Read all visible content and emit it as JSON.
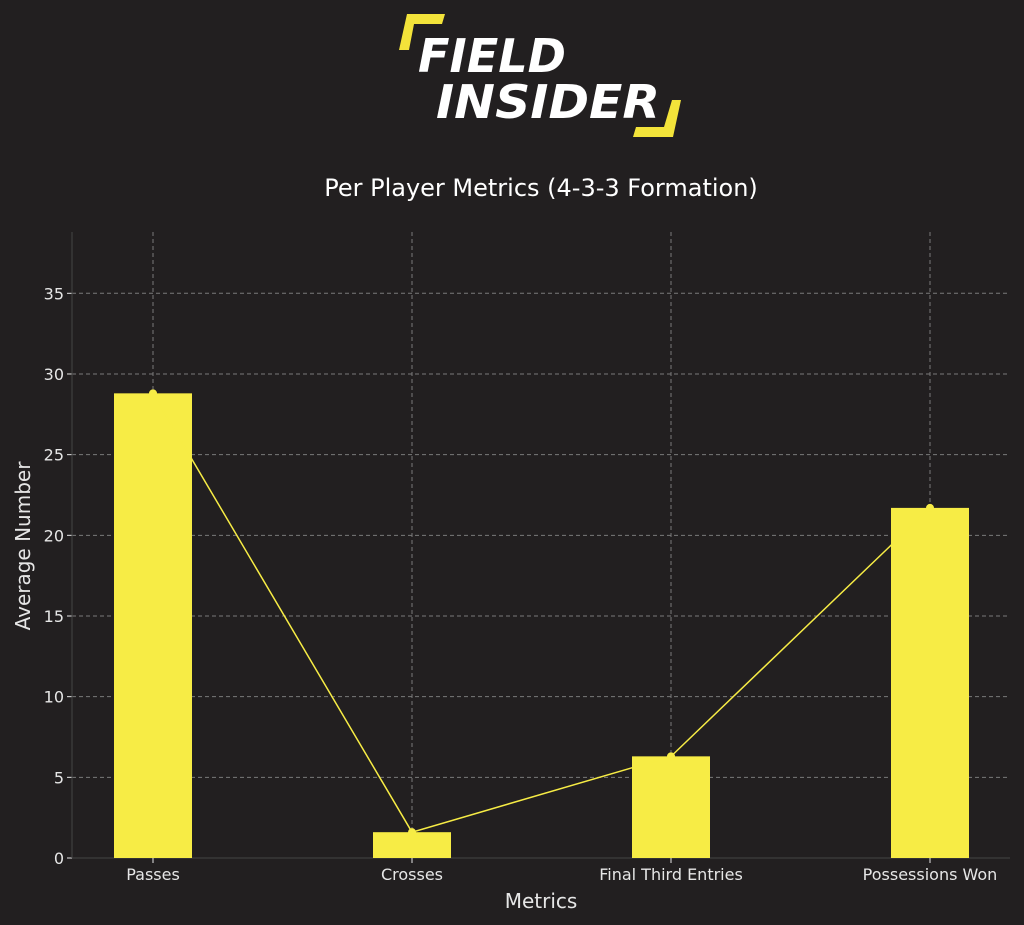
{
  "logo": {
    "line1": "FIELD",
    "line2": "INSIDER",
    "accent_color": "#f3e33a"
  },
  "chart_data": {
    "type": "bar",
    "title": "Per Player Metrics (4-3-3 Formation)",
    "xlabel": "Metrics",
    "ylabel": "Average Number",
    "categories": [
      "Passes",
      "Crosses",
      "Final Third Entries",
      "Possessions Won"
    ],
    "values": [
      28.8,
      1.6,
      6.3,
      21.7
    ],
    "overlay_line": true,
    "ylim": [
      0,
      38.8
    ],
    "yticks": [
      0,
      5,
      10,
      15,
      20,
      25,
      30,
      35
    ],
    "grid": true,
    "legend": "none",
    "colors": {
      "bar": "#f7ec45",
      "line": "#f7ec45",
      "background": "#221f20",
      "grid": "#7a7a7a",
      "text": "#e6e6e6"
    }
  }
}
